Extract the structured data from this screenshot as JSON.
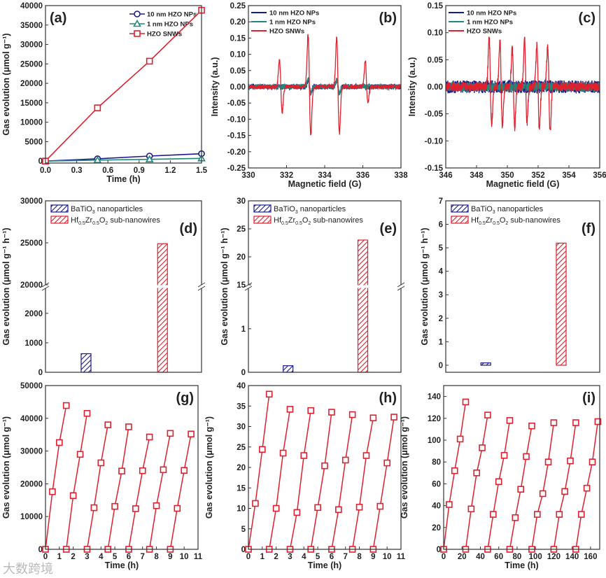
{
  "watermark": "大数跨境",
  "colors": {
    "navy": "#1a1a8c",
    "teal": "#1f8a7a",
    "red": "#e0202e"
  },
  "chart_data": [
    {
      "label": "(a)",
      "type": "line",
      "xlabel": "Time (h)",
      "ylabel": "Gas evolution (μmol g⁻¹)",
      "xlim": [
        0,
        1.5
      ],
      "ylim": [
        -500,
        40000
      ],
      "xticks": [
        "0.0",
        "0.3",
        "0.6",
        "0.9",
        "1.2",
        "1.5"
      ],
      "yticks": [
        "0",
        "5000",
        "10000",
        "15000",
        "20000",
        "25000",
        "30000",
        "35000",
        "40000"
      ],
      "series": [
        {
          "name": "10 nm HZO NPs",
          "color": "#1a1a8c",
          "marker": "circle",
          "x": [
            0,
            0.5,
            1.0,
            1.5
          ],
          "y": [
            0,
            600,
            1300,
            1900
          ]
        },
        {
          "name": "1 nm HZO NPs",
          "color": "#1f8a7a",
          "marker": "triangle",
          "x": [
            0,
            0.5,
            1.0,
            1.5
          ],
          "y": [
            0,
            250,
            450,
            700
          ]
        },
        {
          "name": "HZO SNWs",
          "color": "#e0202e",
          "marker": "square",
          "x": [
            0,
            0.5,
            1.0,
            1.5
          ],
          "y": [
            0,
            13700,
            25700,
            38800
          ]
        }
      ]
    },
    {
      "label": "(b)",
      "type": "epr",
      "xlabel": "Magnetic field (G)",
      "ylabel": "Intensity (a.u.)",
      "xlim": [
        330,
        338
      ],
      "ylim": [
        -0.25,
        0.25
      ],
      "width": 0.07,
      "xticks": [
        "330",
        "332",
        "334",
        "336",
        "338"
      ],
      "yticks": [
        "-0.25",
        "-0.20",
        "-0.15",
        "-0.10",
        "-0.05",
        "0.00",
        "0.05",
        "0.10",
        "0.15",
        "0.20",
        "0.25"
      ],
      "series": [
        {
          "name": "10 nm HZO NPs",
          "color": "#1a1a8c",
          "noise": 0.008,
          "peaks": [
            [
              333.2,
              0.02,
              -0.02
            ],
            [
              334.7,
              0.02,
              -0.02
            ]
          ]
        },
        {
          "name": "1 nm HZO NPs",
          "color": "#1f8a7a",
          "noise": 0.008,
          "peaks": [
            [
              333.2,
              0.025,
              -0.02
            ],
            [
              334.7,
              0.02,
              -0.02
            ]
          ]
        },
        {
          "name": "HZO SNWs",
          "color": "#e0202e",
          "noise": 0.007,
          "peaks": [
            [
              331.7,
              0.08,
              -0.08
            ],
            [
              333.2,
              0.16,
              -0.15
            ],
            [
              334.7,
              0.15,
              -0.145
            ],
            [
              336.2,
              0.08,
              -0.05
            ]
          ]
        }
      ]
    },
    {
      "label": "(c)",
      "type": "epr",
      "xlabel": "Magnetic field (G)",
      "ylabel": "Intensity (a.u.)",
      "xlim": [
        346,
        356
      ],
      "ylim": [
        -0.15,
        0.15
      ],
      "width": 0.08,
      "xticks": [
        "346",
        "348",
        "350",
        "352",
        "354",
        "356"
      ],
      "yticks": [
        "-0.15",
        "-0.10",
        "-0.05",
        "0.00",
        "0.05",
        "0.10",
        "0.15"
      ],
      "series": [
        {
          "name": "10 nm HZO NPs",
          "color": "#1a1a8c",
          "noise": 0.012,
          "peaks": []
        },
        {
          "name": "1 nm HZO NPs",
          "color": "#1f8a7a",
          "noise": 0.009,
          "peaks": []
        },
        {
          "name": "HZO SNWs",
          "color": "#e0202e",
          "noise": 0.008,
          "peaks": [
            [
              348.9,
              0.09,
              -0.07
            ],
            [
              349.6,
              0.085,
              -0.07
            ],
            [
              350.4,
              0.07,
              -0.075
            ],
            [
              351.2,
              0.09,
              -0.065
            ],
            [
              352.0,
              0.08,
              -0.08
            ],
            [
              352.7,
              0.075,
              -0.085
            ]
          ]
        }
      ]
    },
    {
      "label": "(d)",
      "type": "bar",
      "broken": true,
      "ylabel": "Gas evolution (μmol g⁻¹ h⁻¹)",
      "lower": [
        0,
        2850
      ],
      "upper": [
        20000,
        30000
      ],
      "yticks_lower": [
        "0",
        "1000",
        "2000"
      ],
      "yticks_upper": [
        "20000",
        "25000",
        "30000"
      ],
      "legend": [
        [
          {
            "t": "BaTiO"
          },
          {
            "t": "3",
            "sub": true
          },
          {
            "t": " nanoparticles"
          }
        ],
        [
          {
            "t": "Hf"
          },
          {
            "t": "0.5",
            "sub": true
          },
          {
            "t": "Zr"
          },
          {
            "t": "0.5",
            "sub": true
          },
          {
            "t": "O"
          },
          {
            "t": "2",
            "sub": true
          },
          {
            "t": " sub-nanowires"
          }
        ]
      ],
      "values": [
        630,
        24900
      ]
    },
    {
      "label": "(e)",
      "type": "bar",
      "broken": true,
      "ylabel": "Gas evolution (μmol g⁻¹ h⁻¹)",
      "lower": [
        0,
        1.93
      ],
      "upper": [
        15,
        30
      ],
      "yticks_lower": [
        "0",
        "1"
      ],
      "yticks_upper": [
        "15",
        "20",
        "25",
        "30"
      ],
      "legend": [
        [
          {
            "t": "BaTiO"
          },
          {
            "t": "3",
            "sub": true
          },
          {
            "t": " nanoparticles"
          }
        ],
        [
          {
            "t": "Hf"
          },
          {
            "t": "0.5",
            "sub": true
          },
          {
            "t": "Zr"
          },
          {
            "t": "0.5",
            "sub": true
          },
          {
            "t": "O"
          },
          {
            "t": "2",
            "sub": true
          },
          {
            "t": " sub-nanowires"
          }
        ]
      ],
      "values": [
        0.15,
        23.0
      ]
    },
    {
      "label": "(f)",
      "type": "bar",
      "broken": false,
      "ylabel": "Gas evolution (μmol g⁻¹ h⁻¹)",
      "ylim": [
        -0.3,
        7
      ],
      "yticks": [
        "0",
        "1",
        "2",
        "3",
        "4",
        "5",
        "6",
        "7"
      ],
      "legend": [
        [
          {
            "t": "BaTiO"
          },
          {
            "t": "3",
            "sub": true
          },
          {
            "t": " nanoparticles"
          }
        ],
        [
          {
            "t": "Hf"
          },
          {
            "t": "0.5",
            "sub": true
          },
          {
            "t": "Zr"
          },
          {
            "t": "0.5",
            "sub": true
          },
          {
            "t": "O"
          },
          {
            "t": "2",
            "sub": true
          },
          {
            "t": " sub-nanowires"
          }
        ]
      ],
      "values": [
        0.1,
        5.2
      ]
    },
    {
      "label": "(g)",
      "type": "cycles",
      "xlabel": "Time (h)",
      "ylabel": "Gas evolution (μmol g⁻¹)",
      "xlim": [
        0,
        11
      ],
      "ylim": [
        0,
        50000
      ],
      "xticks": [
        "0",
        "1",
        "2",
        "3",
        "4",
        "5",
        "6",
        "7",
        "8",
        "9",
        "10",
        "11"
      ],
      "yticks": [
        "0",
        "10000",
        "20000",
        "30000",
        "40000",
        "50000"
      ],
      "cycles": [
        {
          "t": [
            0,
            0.5,
            1,
            1.5
          ],
          "v": [
            0,
            17600,
            32600,
            43900
          ]
        },
        {
          "t": [
            1.5,
            2,
            2.5,
            3
          ],
          "v": [
            0,
            16400,
            29000,
            41500
          ]
        },
        {
          "t": [
            3,
            3.5,
            4,
            4.5
          ],
          "v": [
            0,
            12700,
            26400,
            38000
          ]
        },
        {
          "t": [
            4.5,
            5,
            5.5,
            6
          ],
          "v": [
            0,
            13100,
            23900,
            37400
          ]
        },
        {
          "t": [
            6,
            6.5,
            7,
            7.5
          ],
          "v": [
            0,
            12400,
            24000,
            34300
          ]
        },
        {
          "t": [
            7.5,
            8,
            8.5,
            9
          ],
          "v": [
            0,
            13300,
            24300,
            35400
          ]
        },
        {
          "t": [
            9,
            9.5,
            10,
            10.5
          ],
          "v": [
            0,
            12500,
            24100,
            35200
          ]
        }
      ]
    },
    {
      "label": "(h)",
      "type": "cycles",
      "xlabel": "Time (h)",
      "ylabel": "Gas evolution (μmol g⁻¹)",
      "xlim": [
        0,
        11
      ],
      "ylim": [
        0,
        40
      ],
      "xticks": [
        "0",
        "1",
        "2",
        "3",
        "4",
        "5",
        "6",
        "7",
        "8",
        "9",
        "10",
        "11"
      ],
      "yticks": [
        "0",
        "5",
        "10",
        "15",
        "20",
        "25",
        "30",
        "35",
        "40"
      ],
      "cycles": [
        {
          "t": [
            0,
            0.5,
            1,
            1.5
          ],
          "v": [
            0,
            11.2,
            24.4,
            37.9
          ]
        },
        {
          "t": [
            1.5,
            2,
            2.5,
            3
          ],
          "v": [
            0,
            10.0,
            23.5,
            34.2
          ]
        },
        {
          "t": [
            3,
            3.5,
            4,
            4.5
          ],
          "v": [
            0,
            9.0,
            22.9,
            33.9
          ]
        },
        {
          "t": [
            4.5,
            5,
            5.5,
            6
          ],
          "v": [
            0,
            10.2,
            20.4,
            33.5
          ]
        },
        {
          "t": [
            6,
            6.5,
            7,
            7.5
          ],
          "v": [
            0,
            9.7,
            21.8,
            32.9
          ]
        },
        {
          "t": [
            7.5,
            8,
            8.5,
            9
          ],
          "v": [
            0,
            10.3,
            22.9,
            32.1
          ]
        },
        {
          "t": [
            9,
            9.5,
            10,
            10.5
          ],
          "v": [
            0,
            10.5,
            21.1,
            32.3
          ]
        }
      ]
    },
    {
      "label": "(i)",
      "type": "cycles",
      "xlabel": "Time (h)",
      "ylabel": "Gas evolution (μmol g⁻¹)",
      "xlim": [
        0,
        170
      ],
      "ylim": [
        0,
        150
      ],
      "xticks": [
        "0",
        "20",
        "40",
        "60",
        "80",
        "100",
        "120",
        "140",
        "160"
      ],
      "yticks": [
        "0",
        "20",
        "40",
        "60",
        "80",
        "100",
        "120",
        "140"
      ],
      "cycles": [
        {
          "t": [
            0,
            6,
            12,
            18,
            24
          ],
          "v": [
            0,
            41,
            72,
            101,
            135
          ]
        },
        {
          "t": [
            24,
            30,
            36,
            42,
            48
          ],
          "v": [
            0,
            37,
            70,
            93,
            123
          ]
        },
        {
          "t": [
            48,
            54,
            60,
            66,
            72
          ],
          "v": [
            0,
            32,
            62,
            86,
            118
          ]
        },
        {
          "t": [
            72,
            78,
            84,
            90,
            96
          ],
          "v": [
            0,
            29,
            55,
            85,
            113
          ]
        },
        {
          "t": [
            96,
            102,
            108,
            114,
            120
          ],
          "v": [
            0,
            32,
            51,
            80,
            116
          ]
        },
        {
          "t": [
            120,
            126,
            132,
            138,
            144
          ],
          "v": [
            0,
            32,
            53,
            81,
            116
          ]
        },
        {
          "t": [
            144,
            150,
            156,
            162,
            168
          ],
          "v": [
            0,
            32,
            56,
            80,
            117
          ]
        }
      ]
    }
  ]
}
